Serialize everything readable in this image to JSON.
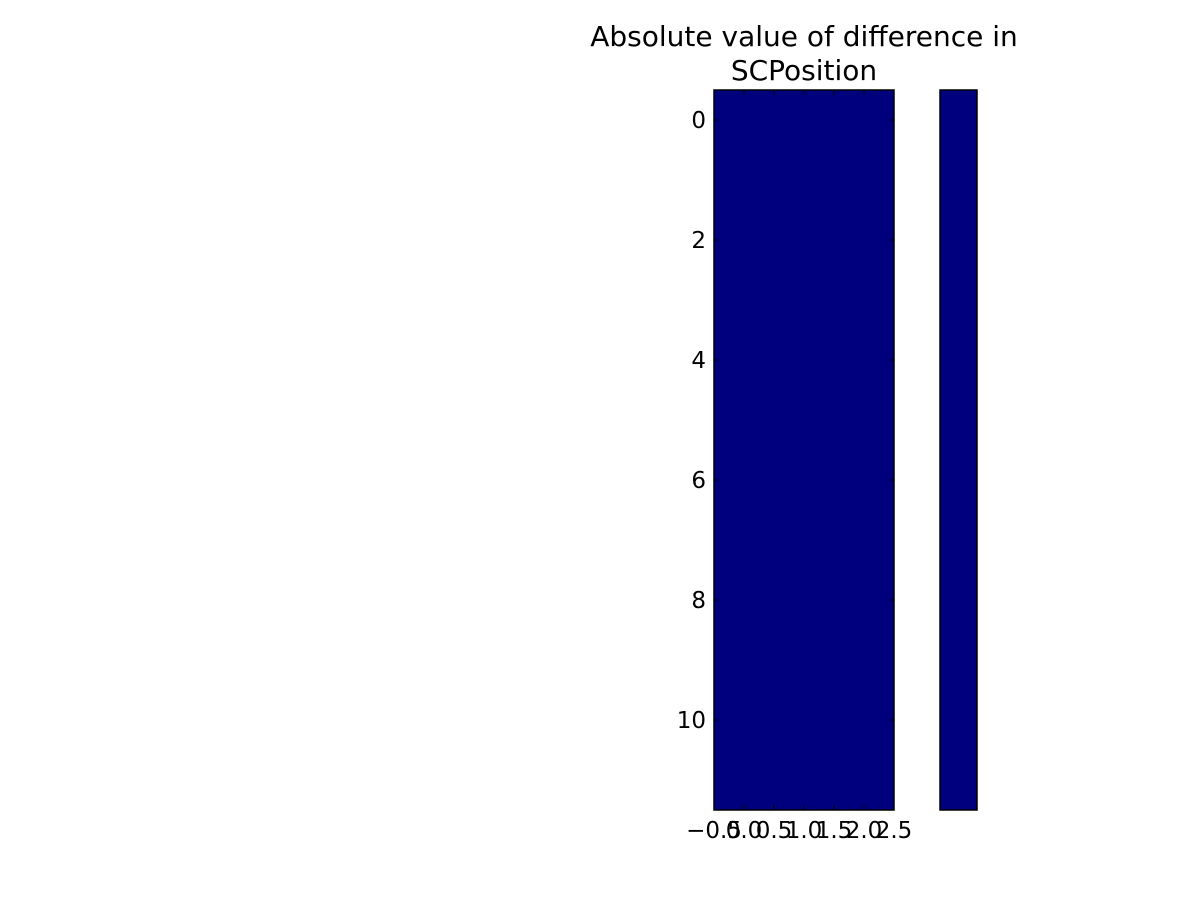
{
  "chart_data": {
    "type": "heatmap",
    "title_lines": [
      "Absolute value of difference in",
      "SCPosition"
    ],
    "x_tick_labels": [
      "−0.5",
      "0.0",
      "0.5",
      "1.0",
      "1.5",
      "2.0",
      "2.5"
    ],
    "y_tick_labels": [
      "0",
      "2",
      "4",
      "6",
      "8",
      "10"
    ],
    "x_ticks": [
      -0.5,
      0.0,
      0.5,
      1.0,
      1.5,
      2.0,
      2.5
    ],
    "y_ticks": [
      0,
      2,
      4,
      6,
      8,
      10
    ],
    "xlim": [
      -0.5,
      2.5
    ],
    "ylim": [
      -0.5,
      11.5
    ],
    "columns": 3,
    "rows": 12,
    "values": [
      [
        0,
        0,
        0
      ],
      [
        0,
        0,
        0
      ],
      [
        0,
        0,
        0
      ],
      [
        0,
        0,
        0
      ],
      [
        0,
        0,
        0
      ],
      [
        0,
        0,
        0
      ],
      [
        0,
        0,
        0
      ],
      [
        0,
        0,
        0
      ],
      [
        0,
        0,
        0
      ],
      [
        0,
        0,
        0
      ],
      [
        0,
        0,
        0
      ],
      [
        0,
        0,
        0
      ]
    ],
    "colormap": "jet",
    "cell_color": "#00007f",
    "colorbar": true,
    "grid": false
  }
}
